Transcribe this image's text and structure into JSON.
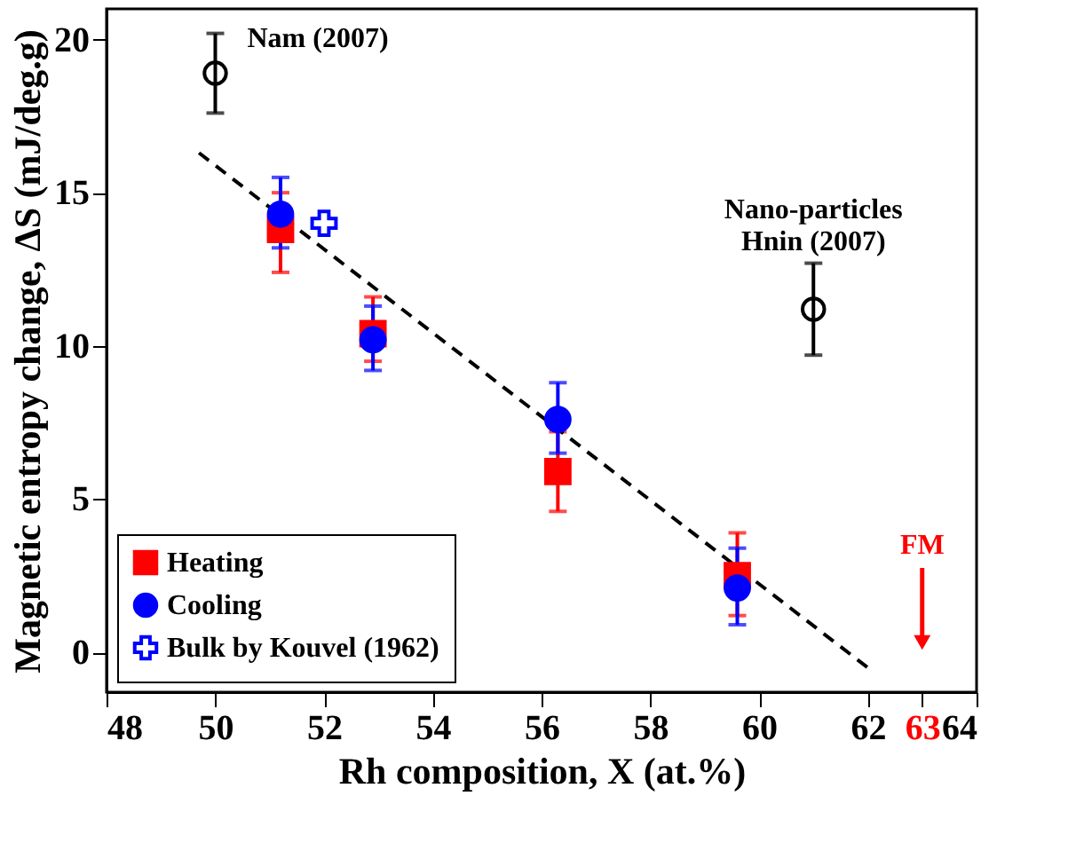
{
  "chart_data": {
    "type": "scatter",
    "xlabel": "Rh composition, X (at.%)",
    "ylabel": "Magnetic entropy change, ΔS (mJ/deg.g)",
    "xlim": [
      48,
      64
    ],
    "ylim": [
      -1.3,
      21
    ],
    "xticks": [
      48,
      50,
      52,
      54,
      56,
      58,
      60,
      62,
      {
        "value": 63,
        "label": "63"
      },
      64
    ],
    "yticks": [
      0,
      5,
      10,
      15,
      20
    ],
    "grid": false,
    "legend": "bottom left",
    "series": [
      {
        "name": "Heating",
        "color": "#ff0000",
        "marker": "square",
        "x": [
          51.2,
          52.9,
          56.3,
          59.6
        ],
        "values": [
          13.8,
          10.4,
          5.9,
          2.5
        ],
        "errors": [
          [
            12.4,
            15.0
          ],
          [
            9.5,
            11.6
          ],
          [
            4.6,
            7.2
          ],
          [
            1.2,
            3.9
          ]
        ]
      },
      {
        "name": "Cooling",
        "color": "#0000ff",
        "marker": "circle",
        "x": [
          51.2,
          52.9,
          56.3,
          59.6
        ],
        "values": [
          14.3,
          10.2,
          7.6,
          2.1
        ],
        "errors": [
          [
            13.2,
            15.5
          ],
          [
            9.2,
            11.3
          ],
          [
            6.5,
            8.8
          ],
          [
            0.9,
            3.4
          ]
        ]
      },
      {
        "name": "Bulk by Kouvel (1962)",
        "color": "#0000ff",
        "marker": "cross",
        "x": [
          52.0
        ],
        "values": [
          14.0
        ]
      },
      {
        "color": "#000000",
        "marker": "circle",
        "x": [
          50.0
        ],
        "values": [
          18.9
        ],
        "errors": [
          [
            17.6,
            20.2
          ]
        ]
      },
      {
        "color": "#000000",
        "marker": "circle",
        "x": [
          61.0
        ],
        "values": [
          11.2
        ],
        "errors": [
          [
            9.7,
            12.7
          ]
        ]
      },
      {
        "type": "line",
        "color": "#000000",
        "marker": "none",
        "line_style": "dashed",
        "x": [
          49.7,
          62.0
        ],
        "values": [
          16.3,
          -0.5
        ]
      }
    ],
    "annotations": [
      {
        "text": "Nam (2007)",
        "x": 50.0,
        "y": 18.9
      },
      {
        "text": "Nano-particles\nHnin (2007)",
        "x": 61.0,
        "y": 11.2
      },
      "FM"
    ]
  }
}
